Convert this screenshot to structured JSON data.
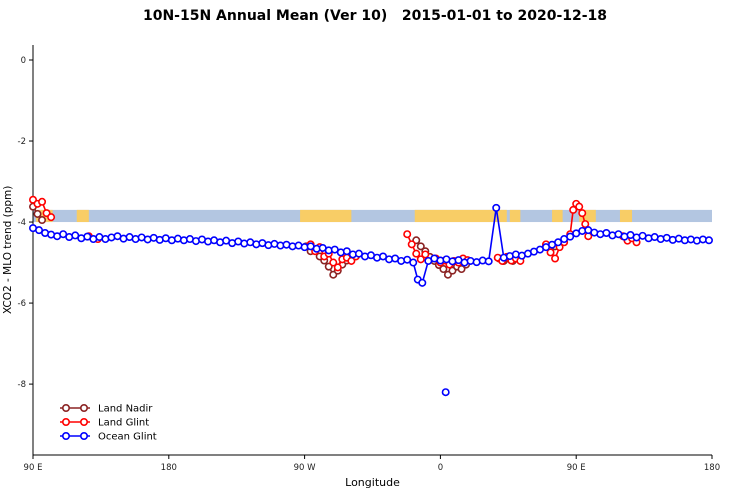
{
  "chart_data": {
    "type": "line",
    "title": "10N-15N Annual Mean (Ver 10)   2015-01-01 to 2020-12-18",
    "xlabel": "Longitude",
    "ylabel": "XCO2 - MLO trend (ppm)",
    "grid": false,
    "x_axis": {
      "min": 90,
      "max": 540,
      "ticks": [
        {
          "pos": 90,
          "label": "90 E"
        },
        {
          "pos": 180,
          "label": "180"
        },
        {
          "pos": 270,
          "label": "90 W"
        },
        {
          "pos": 360,
          "label": "0"
        },
        {
          "pos": 450,
          "label": "90 E"
        },
        {
          "pos": 540,
          "label": "180"
        }
      ]
    },
    "y_axis": {
      "min": -9.75,
      "max": 0.37,
      "ticks": [
        {
          "pos": 0,
          "label": "0"
        },
        {
          "pos": -2,
          "label": "-2"
        },
        {
          "pos": -4,
          "label": "-4"
        },
        {
          "pos": -6,
          "label": "-6"
        },
        {
          "pos": -8,
          "label": "-8"
        }
      ]
    },
    "surface_band": {
      "y_top": -3.7,
      "y_bottom": -4.0,
      "ocean_color": "#b3c6e1",
      "land_color": "#f8cd66",
      "land_segments": [
        [
          92,
          103
        ],
        [
          119,
          127
        ],
        [
          267,
          301
        ],
        [
          343,
          404
        ],
        [
          406,
          413
        ],
        [
          434,
          441
        ],
        [
          452,
          463
        ],
        [
          479,
          487
        ]
      ]
    },
    "legend": {
      "position": "bottom-left",
      "entries": [
        "Land Nadir",
        "Land Glint",
        "Ocean Glint"
      ]
    },
    "series": [
      {
        "name": "Land Nadir",
        "color": "#8B2323",
        "segments": [
          [
            [
              90,
              -3.62
            ],
            [
              93,
              -3.8
            ],
            [
              96,
              -3.95
            ]
          ],
          [
            [
              271,
              -4.6
            ],
            [
              274,
              -4.72
            ],
            [
              277,
              -4.68
            ],
            [
              280,
              -4.85
            ],
            [
              283,
              -4.95
            ],
            [
              286,
              -5.1
            ],
            [
              289,
              -5.3
            ],
            [
              292,
              -5.2
            ],
            [
              295,
              -5.05
            ],
            [
              298,
              -4.95
            ]
          ],
          [
            [
              344,
              -4.45
            ],
            [
              347,
              -4.6
            ],
            [
              350,
              -4.72
            ],
            [
              353,
              -4.86
            ],
            [
              356,
              -4.96
            ],
            [
              359,
              -5.06
            ],
            [
              362,
              -5.16
            ],
            [
              365,
              -5.3
            ],
            [
              368,
              -5.2
            ],
            [
              371,
              -5.1
            ],
            [
              374,
              -5.16
            ],
            [
              377,
              -5.05
            ]
          ],
          [
            [
              399,
              -4.9
            ],
            [
              402,
              -4.96
            ],
            [
              405,
              -4.9
            ],
            [
              408,
              -4.96
            ]
          ],
          [
            [
              430,
              -4.6
            ],
            [
              433,
              -4.66
            ],
            [
              436,
              -4.6
            ]
          ]
        ]
      },
      {
        "name": "Land Glint",
        "color": "#FF0000",
        "segments": [
          [
            [
              90,
              -3.45
            ],
            [
              93,
              -3.55
            ],
            [
              96,
              -3.5
            ],
            [
              99,
              -3.78
            ],
            [
              102,
              -3.88
            ]
          ],
          [
            [
              127,
              -4.35
            ],
            [
              133,
              -4.42
            ]
          ],
          [
            [
              274,
              -4.55
            ],
            [
              277,
              -4.72
            ],
            [
              280,
              -4.62
            ],
            [
              283,
              -4.85
            ],
            [
              286,
              -4.78
            ],
            [
              289,
              -5.0
            ],
            [
              292,
              -5.12
            ],
            [
              295,
              -4.92
            ],
            [
              298,
              -4.88
            ],
            [
              301,
              -4.96
            ],
            [
              304,
              -4.85
            ]
          ],
          [
            [
              338,
              -4.3
            ],
            [
              341,
              -4.55
            ],
            [
              344,
              -4.78
            ],
            [
              347,
              -4.92
            ],
            [
              350,
              -4.8
            ]
          ],
          [
            [
              357,
              -4.9
            ],
            [
              360,
              -5.0
            ],
            [
              363,
              -4.95
            ],
            [
              366,
              -5.05
            ],
            [
              369,
              -4.96
            ],
            [
              372,
              -5.0
            ],
            [
              375,
              -4.9
            ],
            [
              378,
              -4.94
            ]
          ],
          [
            [
              398,
              -4.88
            ],
            [
              401,
              -4.96
            ],
            [
              404,
              -4.86
            ],
            [
              407,
              -4.95
            ],
            [
              410,
              -4.9
            ],
            [
              413,
              -4.96
            ]
          ],
          [
            [
              430,
              -4.55
            ],
            [
              433,
              -4.75
            ],
            [
              436,
              -4.9
            ],
            [
              439,
              -4.62
            ],
            [
              442,
              -4.5
            ]
          ],
          [
            [
              446,
              -4.3
            ],
            [
              448,
              -3.7
            ],
            [
              450,
              -3.55
            ],
            [
              452,
              -3.62
            ],
            [
              454,
              -3.78
            ],
            [
              456,
              -4.05
            ],
            [
              458,
              -4.35
            ]
          ],
          [
            [
              481,
              -4.35
            ],
            [
              484,
              -4.46
            ],
            [
              487,
              -4.4
            ],
            [
              490,
              -4.5
            ]
          ]
        ]
      },
      {
        "name": "Ocean Glint",
        "color": "#0000FF",
        "segments": [
          [
            [
              90,
              -4.15
            ],
            [
              94,
              -4.2
            ],
            [
              98,
              -4.27
            ],
            [
              102,
              -4.31
            ],
            [
              106,
              -4.35
            ],
            [
              110,
              -4.3
            ],
            [
              114,
              -4.37
            ],
            [
              118,
              -4.33
            ],
            [
              122,
              -4.4
            ],
            [
              126,
              -4.36
            ],
            [
              130,
              -4.42
            ],
            [
              134,
              -4.37
            ],
            [
              138,
              -4.42
            ],
            [
              142,
              -4.38
            ],
            [
              146,
              -4.35
            ],
            [
              150,
              -4.41
            ],
            [
              154,
              -4.37
            ],
            [
              158,
              -4.42
            ],
            [
              162,
              -4.38
            ],
            [
              166,
              -4.43
            ],
            [
              170,
              -4.39
            ],
            [
              174,
              -4.44
            ],
            [
              178,
              -4.4
            ],
            [
              182,
              -4.45
            ],
            [
              186,
              -4.41
            ],
            [
              190,
              -4.45
            ],
            [
              194,
              -4.42
            ],
            [
              198,
              -4.47
            ],
            [
              202,
              -4.43
            ],
            [
              206,
              -4.48
            ],
            [
              210,
              -4.45
            ],
            [
              214,
              -4.5
            ],
            [
              218,
              -4.46
            ],
            [
              222,
              -4.52
            ],
            [
              226,
              -4.48
            ],
            [
              230,
              -4.53
            ],
            [
              234,
              -4.5
            ],
            [
              238,
              -4.55
            ],
            [
              242,
              -4.52
            ],
            [
              246,
              -4.57
            ],
            [
              250,
              -4.54
            ],
            [
              254,
              -4.58
            ],
            [
              258,
              -4.56
            ],
            [
              262,
              -4.6
            ],
            [
              266,
              -4.58
            ],
            [
              270,
              -4.62
            ],
            [
              274,
              -4.6
            ],
            [
              278,
              -4.66
            ],
            [
              282,
              -4.64
            ],
            [
              286,
              -4.7
            ],
            [
              290,
              -4.68
            ],
            [
              294,
              -4.75
            ],
            [
              298,
              -4.72
            ],
            [
              302,
              -4.8
            ],
            [
              306,
              -4.78
            ],
            [
              310,
              -4.85
            ],
            [
              314,
              -4.82
            ],
            [
              318,
              -4.88
            ],
            [
              322,
              -4.85
            ],
            [
              326,
              -4.92
            ],
            [
              330,
              -4.9
            ],
            [
              334,
              -4.96
            ],
            [
              338,
              -4.93
            ],
            [
              342,
              -5.0
            ],
            [
              345,
              -5.42
            ],
            [
              348,
              -5.5
            ],
            [
              352,
              -4.96
            ],
            [
              356,
              -4.9
            ],
            [
              360,
              -4.95
            ],
            [
              364,
              -4.92
            ],
            [
              368,
              -4.97
            ],
            [
              372,
              -4.94
            ],
            [
              376,
              -5.0
            ],
            [
              380,
              -4.96
            ],
            [
              384,
              -4.99
            ],
            [
              388,
              -4.95
            ],
            [
              392,
              -4.97
            ],
            [
              397,
              -3.65
            ],
            [
              402,
              -4.88
            ],
            [
              406,
              -4.84
            ],
            [
              410,
              -4.8
            ],
            [
              414,
              -4.83
            ],
            [
              418,
              -4.78
            ],
            [
              422,
              -4.73
            ],
            [
              426,
              -4.68
            ],
            [
              430,
              -4.62
            ],
            [
              434,
              -4.56
            ],
            [
              438,
              -4.5
            ],
            [
              442,
              -4.42
            ],
            [
              446,
              -4.36
            ],
            [
              450,
              -4.28
            ],
            [
              454,
              -4.22
            ],
            [
              458,
              -4.2
            ],
            [
              462,
              -4.26
            ],
            [
              466,
              -4.3
            ],
            [
              470,
              -4.27
            ],
            [
              474,
              -4.33
            ],
            [
              478,
              -4.3
            ],
            [
              482,
              -4.36
            ],
            [
              486,
              -4.32
            ],
            [
              490,
              -4.38
            ],
            [
              494,
              -4.34
            ],
            [
              498,
              -4.4
            ],
            [
              502,
              -4.37
            ],
            [
              506,
              -4.42
            ],
            [
              510,
              -4.39
            ],
            [
              514,
              -4.44
            ],
            [
              518,
              -4.41
            ],
            [
              522,
              -4.45
            ],
            [
              526,
              -4.43
            ],
            [
              530,
              -4.46
            ],
            [
              534,
              -4.43
            ],
            [
              538,
              -4.45
            ]
          ],
          [
            [
              363.5,
              -8.2
            ]
          ]
        ]
      }
    ]
  }
}
